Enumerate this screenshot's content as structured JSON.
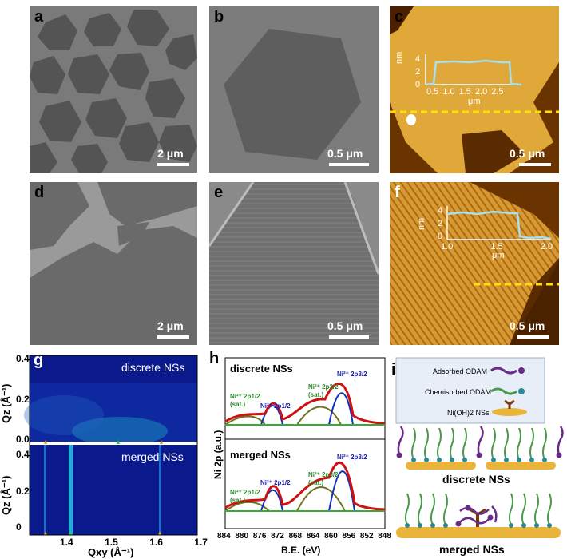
{
  "panels": {
    "a": {
      "label": "a",
      "scale": "2 μm"
    },
    "b": {
      "label": "b",
      "scale": "0.5 μm"
    },
    "c": {
      "label": "c",
      "scale": "0.5 μm",
      "inset": {
        "ylabel": "nm",
        "yticks": [
          "4",
          "2",
          "0"
        ],
        "xticks": [
          "0.5",
          "1.0",
          "1.5",
          "2.0",
          "2.5"
        ],
        "xunit": "μm"
      }
    },
    "d": {
      "label": "d",
      "scale": "2 μm"
    },
    "e": {
      "label": "e",
      "scale": "0.5 μm"
    },
    "f": {
      "label": "f",
      "scale": "0.5 μm",
      "inset": {
        "ylabel": "nm",
        "yticks": [
          "4",
          "2",
          "0"
        ],
        "xticks": [
          "1.0",
          "1.5",
          "2.0"
        ],
        "xunit": "μm"
      }
    },
    "g": {
      "label": "g",
      "top_title": "discrete NSs",
      "bottom_title": "merged NSs",
      "ylabel": "Qz (Å⁻¹)",
      "xlabel": "Qxy (Å⁻¹)",
      "yticks_top": [
        "0.4",
        "0.2",
        "0.0"
      ],
      "yticks_bottom": [
        "0.4",
        "0.2",
        "0"
      ],
      "xticks": [
        "1.4",
        "1.5",
        "1.6",
        "1.7"
      ]
    },
    "h": {
      "label": "h",
      "ylabel": "Ni 2p (a.u.)",
      "xlabel": "B.E. (eV)",
      "xticks": [
        "884",
        "880",
        "876",
        "872",
        "868",
        "864",
        "860",
        "856",
        "852",
        "848"
      ],
      "top_title": "discrete NSs",
      "bottom_title": "merged NSs",
      "peak_labels": {
        "p12": "Ni²⁺ 2p1/2",
        "p32": "Ni²⁺ 2p3/2",
        "sat12": "Ni²⁺ 2p1/2",
        "sat32": "Ni²⁺ 2p3/2",
        "sat": "(sat.)"
      }
    },
    "i": {
      "label": "i",
      "legend": [
        "Adsorbed ODAM",
        "Chemisorbed ODAM",
        "Ni(OH)2 NSs"
      ],
      "caption_top": "discrete NSs",
      "caption_bottom": "merged NSs"
    }
  },
  "colors": {
    "afm_dark": "#5a2a00",
    "afm_light": "#e8b040",
    "sem_bg": "#5a5a5a",
    "gixd_bg": "#0a1a8c",
    "fit_red": "#d01010",
    "fit_blue": "#1030c0",
    "fit_green": "#30b030",
    "fit_olive": "#707020",
    "label_blue": "#1a20b0",
    "label_green": "#2a8a2a",
    "ligand_purple": "#6a2a8a",
    "ligand_green": "#4a9a4a",
    "substrate": "#e8b43a"
  }
}
